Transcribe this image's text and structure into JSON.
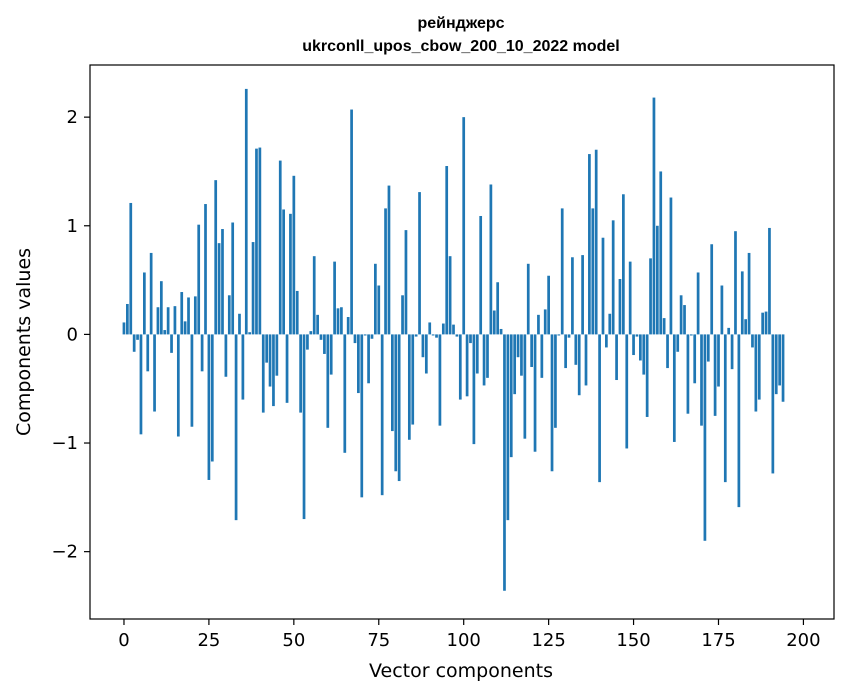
{
  "chart_data": {
    "type": "bar",
    "title": "рейнджерс",
    "subtitle": "ukrconll_upos_cbow_200_10_2022 model",
    "xlabel": "Vector components",
    "ylabel": "Components values",
    "xlim": [
      -10,
      209
    ],
    "ylim": [
      -2.62,
      2.48
    ],
    "xticks": [
      0,
      25,
      50,
      75,
      100,
      125,
      150,
      175,
      200
    ],
    "xtick_labels": [
      "0",
      "25",
      "50",
      "75",
      "100",
      "125",
      "150",
      "175",
      "200"
    ],
    "yticks": [
      -2,
      -1,
      0,
      1,
      2
    ],
    "ytick_labels": [
      "−2",
      "−1",
      "0",
      "1",
      "2"
    ],
    "grid": false,
    "bar_color": "#1f77b4",
    "values": [
      0.11,
      0.28,
      1.21,
      -0.16,
      -0.05,
      -0.92,
      0.57,
      -0.34,
      0.75,
      -0.71,
      0.25,
      0.49,
      0.04,
      0.25,
      -0.17,
      0.26,
      -0.94,
      0.39,
      0.12,
      0.34,
      -0.85,
      0.35,
      1.01,
      -0.34,
      1.2,
      -1.34,
      -1.17,
      1.42,
      0.84,
      0.97,
      -0.39,
      0.36,
      1.03,
      -1.71,
      0.19,
      -0.6,
      2.26,
      0.02,
      0.85,
      1.71,
      1.72,
      -0.72,
      -0.26,
      -0.48,
      -0.66,
      -0.38,
      1.6,
      1.15,
      -0.63,
      1.11,
      1.46,
      0.4,
      -0.72,
      -1.7,
      -0.14,
      0.03,
      0.72,
      0.18,
      -0.05,
      -0.18,
      -0.86,
      -0.37,
      0.67,
      0.24,
      0.25,
      -1.09,
      0.16,
      2.07,
      -0.08,
      -0.54,
      -1.5,
      -0.01,
      -0.45,
      -0.04,
      0.65,
      0.45,
      -1.48,
      1.16,
      1.37,
      -0.89,
      -1.26,
      -1.35,
      0.36,
      0.96,
      -0.97,
      -0.83,
      -0.02,
      1.31,
      -0.21,
      -0.36,
      0.11,
      -0.01,
      -0.03,
      -0.84,
      0.1,
      1.55,
      0.72,
      0.09,
      -0.02,
      -0.6,
      2.0,
      -0.57,
      -0.08,
      -1.01,
      -0.36,
      1.09,
      -0.47,
      -0.4,
      1.38,
      0.22,
      0.48,
      0.05,
      -2.36,
      -1.71,
      -1.13,
      -0.55,
      -0.21,
      -0.38,
      -0.96,
      0.65,
      -0.3,
      -1.08,
      0.18,
      -0.4,
      0.23,
      0.54,
      -1.26,
      -0.86,
      -0.01,
      1.16,
      -0.31,
      -0.03,
      0.71,
      -0.28,
      -0.56,
      0.73,
      -0.47,
      1.66,
      1.16,
      1.7,
      -1.36,
      0.89,
      -0.12,
      0.19,
      1.05,
      -0.42,
      0.51,
      1.29,
      -1.05,
      0.67,
      -0.19,
      -0.02,
      -0.24,
      -0.37,
      -0.76,
      0.7,
      2.18,
      1.0,
      1.5,
      0.15,
      -0.31,
      1.26,
      -0.99,
      -0.16,
      0.36,
      0.27,
      -0.73,
      -0.01,
      -0.45,
      0.57,
      -0.84,
      -1.9,
      -0.25,
      0.83,
      -0.75,
      -0.48,
      0.45,
      -1.36,
      0.06,
      -0.32,
      0.95,
      -1.59,
      0.58,
      0.14,
      0.75,
      -0.12,
      -0.71,
      -0.6,
      0.2,
      0.21,
      0.98,
      -1.28,
      -0.55,
      -0.47,
      -0.62
    ]
  }
}
